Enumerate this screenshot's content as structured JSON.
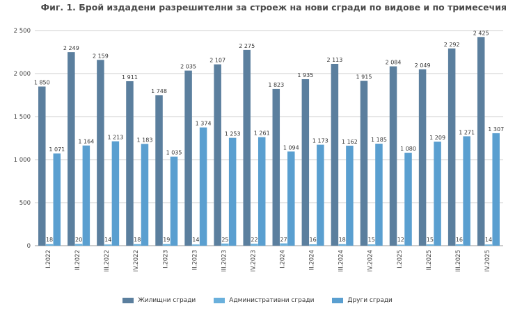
{
  "chart_data": {
    "type": "bar",
    "title": "Фиг. 1. Брой издадени разрешителни за строеж на нови сгради по видове и по тримесечия",
    "categories": [
      "I.2022",
      "II.2022",
      "III.2022",
      "IV.2022",
      "I.2023",
      "II.2023",
      "III.2023",
      "IV.2023",
      "I.2024",
      "II.2024",
      "III.2024",
      "IV.2024",
      "I.2025",
      "II.2025",
      "III.2025",
      "IV.2025"
    ],
    "series": [
      {
        "name": "Жилищни сгради",
        "color": "#5b7f9e",
        "values": [
          1850,
          2249,
          2159,
          1911,
          1748,
          2035,
          2107,
          2275,
          1823,
          1935,
          2113,
          1915,
          2084,
          2049,
          2292,
          2425
        ],
        "labels": [
          "1 850",
          "2 249",
          "2 159",
          "1 911",
          "1 748",
          "2 035",
          "2 107",
          "2 275",
          "1 823",
          "1 935",
          "2 113",
          "1 915",
          "2 084",
          "2 049",
          "2 292",
          "2 425"
        ]
      },
      {
        "name": "Административни сгради",
        "color": "#6ab0dc",
        "values": [
          18,
          20,
          14,
          18,
          19,
          14,
          25,
          22,
          27,
          16,
          18,
          15,
          12,
          15,
          16,
          14
        ],
        "labels": [
          "18",
          "20",
          "14",
          "18",
          "19",
          "14",
          "25",
          "22",
          "27",
          "16",
          "18",
          "15",
          "12",
          "15",
          "16",
          "14"
        ]
      },
      {
        "name": "Други сгради",
        "color": "#5a9fd0",
        "values": [
          1071,
          1164,
          1213,
          1183,
          1035,
          1374,
          1253,
          1261,
          1094,
          1173,
          1162,
          1185,
          1080,
          1209,
          1271,
          1307
        ],
        "labels": [
          "1 071",
          "1 164",
          "1 213",
          "1 183",
          "1 035",
          "1 374",
          "1 253",
          "1 261",
          "1 094",
          "1 173",
          "1 162",
          "1 185",
          "1 080",
          "1 209",
          "1 271",
          "1 307"
        ]
      }
    ],
    "ylim": [
      0,
      2500
    ],
    "yticks": [
      0,
      500,
      1000,
      1500,
      2000,
      2500
    ],
    "ytick_labels": [
      "0",
      "500",
      "1 000",
      "1 500",
      "2 000",
      "2 500"
    ],
    "grid": true,
    "legend_position": "bottom"
  }
}
